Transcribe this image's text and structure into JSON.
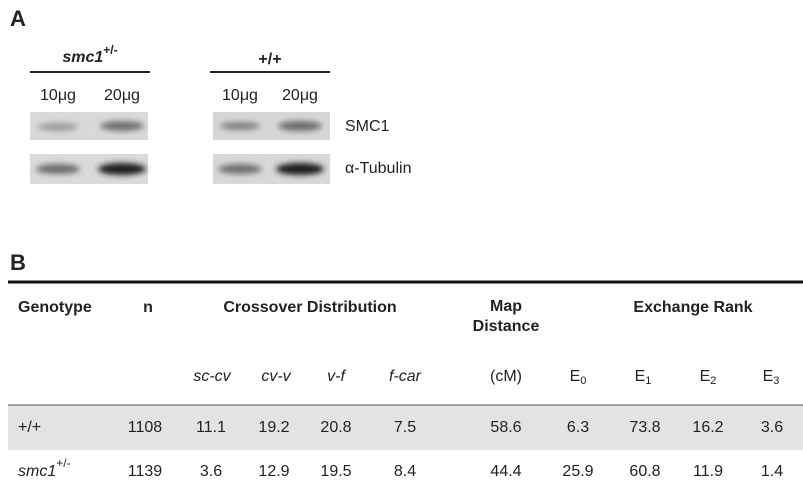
{
  "panel_a": {
    "label": "A",
    "groups": [
      {
        "genotype": {
          "base": "smc1",
          "sup": "+/-"
        },
        "lanes": [
          "10μg",
          "20μg"
        ]
      },
      {
        "genotype": {
          "base": "+/+"
        },
        "lanes": [
          "10μg",
          "20μg"
        ]
      }
    ],
    "blots": [
      "SMC1",
      "α-Tubulin"
    ]
  },
  "panel_b": {
    "label": "B",
    "table": {
      "headers": {
        "genotype": "Genotype",
        "n": "n",
        "crossover": "Crossover Distribution",
        "map": [
          "Map",
          "Distance"
        ],
        "exchange": "Exchange Rank"
      },
      "subheaders": {
        "crossover": [
          "sc-cv",
          "cv-v",
          "v-f",
          "f-car"
        ],
        "map": "(cM)",
        "exchange": [
          {
            "base": "E",
            "sub": "0"
          },
          {
            "base": "E",
            "sub": "1"
          },
          {
            "base": "E",
            "sub": "2"
          },
          {
            "base": "E",
            "sub": "3"
          }
        ]
      },
      "rows": [
        {
          "genotype": {
            "base": "+/+"
          },
          "values": [
            1108,
            11.1,
            19.2,
            20.8,
            7.5,
            58.6,
            6.3,
            73.8,
            16.2,
            3.6
          ]
        },
        {
          "genotype": {
            "base": "smc1",
            "sup": "+/-"
          },
          "values": [
            1139,
            3.6,
            12.9,
            19.5,
            8.4,
            44.4,
            25.9,
            60.8,
            11.9,
            1.4
          ]
        }
      ]
    }
  }
}
